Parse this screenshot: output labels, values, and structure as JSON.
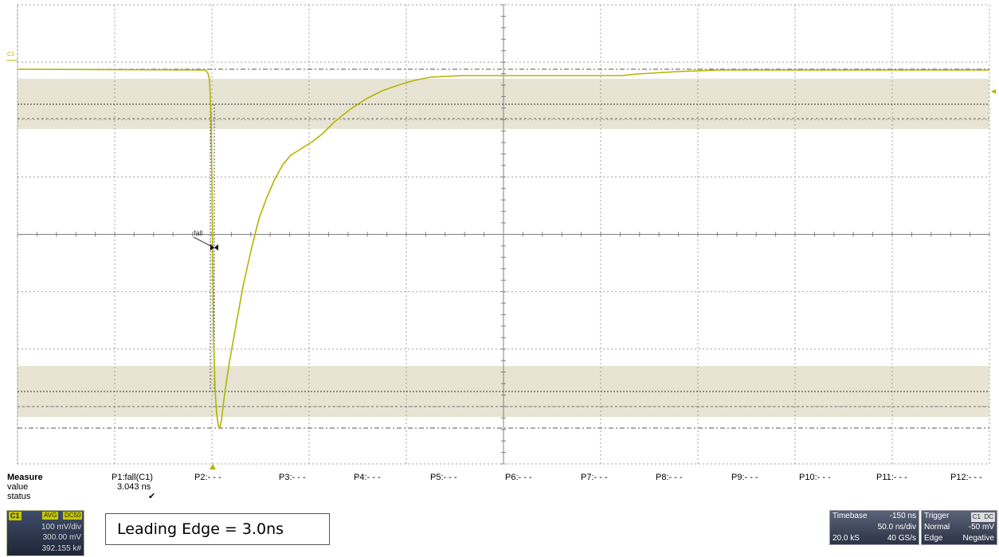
{
  "channel_marker": "C1",
  "fall_label": "fall",
  "measure": {
    "header": "Measure",
    "row_value": "value",
    "row_status": "status",
    "params": [
      "P1:fall(C1)",
      "P2:- - -",
      "P3:- - -",
      "P4:- - -",
      "P5:- - -",
      "P6:- - -",
      "P7:- - -",
      "P8:- - -",
      "P9:- - -",
      "P10:- - -",
      "P11:- - -",
      "P12:- - -"
    ],
    "p1_value": "3.043 ns",
    "p1_status": "✔"
  },
  "channel_descriptor": {
    "name": "C1",
    "badge1": "AVG",
    "badge2": "DC50",
    "vdiv": "100 mV/div",
    "offset": "300.00 mV",
    "sweeps": "392.155 k#"
  },
  "callout": "Leading Edge = 3.0ns",
  "timebase": {
    "label": "Timebase",
    "delay": "-150 ns",
    "tdiv": "50.0 ns/div",
    "samples": "20.0 kS",
    "rate": "40 GS/s"
  },
  "trigger": {
    "label": "Trigger",
    "badge1": "C1",
    "badge2": "DC",
    "mode": "Normal",
    "level": "-50 mV",
    "type": "Edge",
    "slope": "Negative"
  },
  "colors": {
    "trace": "#b4b400",
    "band": "#e7e4d3",
    "grid": "#9a9a9a",
    "panel_dark": "#1e2638"
  }
}
